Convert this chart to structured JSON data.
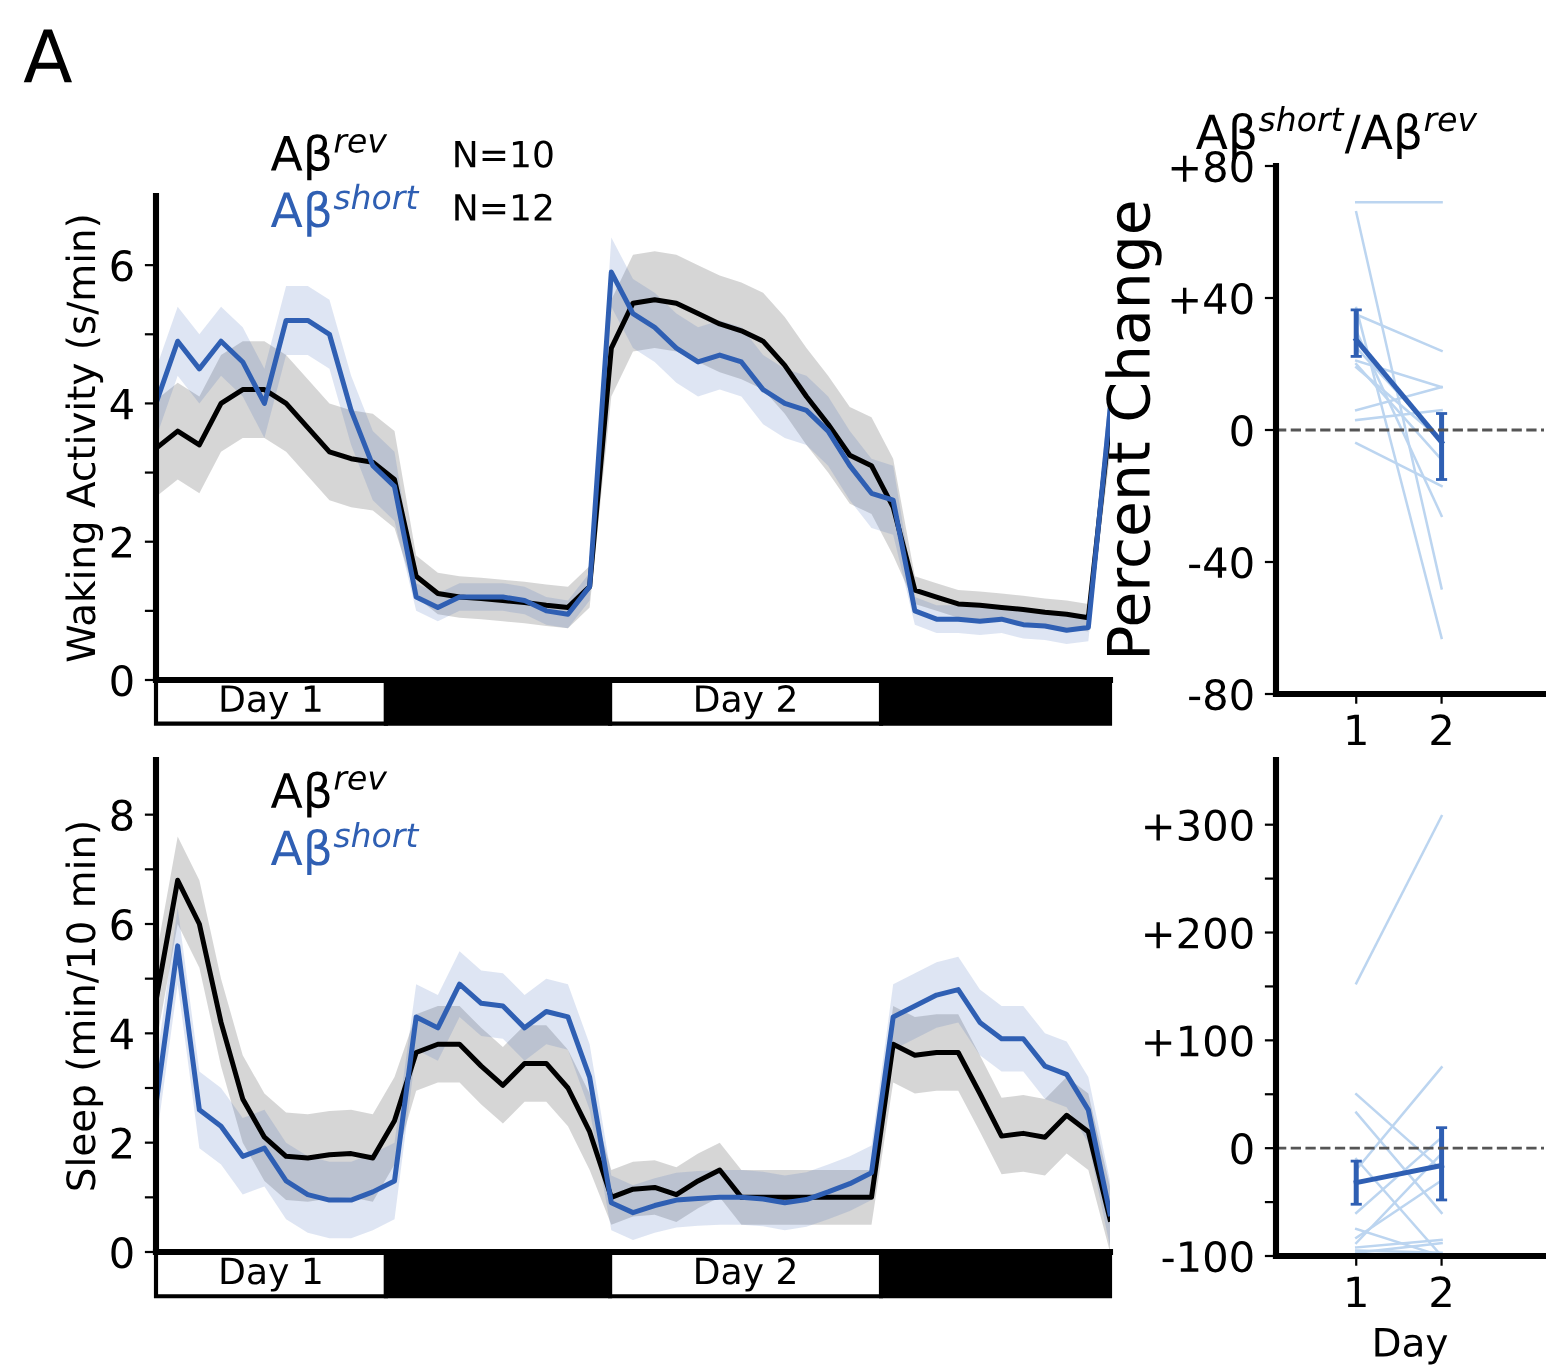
{
  "chart_data": [
    {
      "type": "line",
      "ylabel": "Waking Activity (s/min)",
      "annotations": [
        "A",
        "N=10",
        "N=12",
        "Day 1",
        "Day 2"
      ],
      "tick_labels": "y",
      "categories": [
        null,
        null,
        null,
        null,
        null,
        null,
        null,
        null,
        null,
        null,
        null,
        null,
        null,
        null,
        null,
        null,
        null,
        null,
        null,
        null,
        null,
        null,
        null,
        null,
        null,
        null,
        null,
        null,
        null,
        null,
        null,
        null,
        null,
        null,
        null,
        null,
        null,
        null,
        null,
        null,
        null,
        null,
        null,
        null,
        null
      ],
      "ylim": [
        0,
        7
      ],
      "yticks": [
        0,
        {
          "value": 1,
          "label": null
        },
        2,
        {
          "value": 3,
          "label": null
        },
        4,
        {
          "value": 5,
          "label": null
        },
        6
      ],
      "series": [
        {
          "name": "Aβ$^{rev}$",
          "color": "#000000",
          "values": [
            3.35,
            3.6,
            3.4,
            4.0,
            4.2,
            4.2,
            4.0,
            3.65,
            3.3,
            3.2,
            3.15,
            2.9,
            1.5,
            1.25,
            1.2,
            1.18,
            1.15,
            1.12,
            1.08,
            1.05,
            1.35,
            4.8,
            5.45,
            5.5,
            5.45,
            5.3,
            5.15,
            5.05,
            4.9,
            4.55,
            4.1,
            3.7,
            3.25,
            3.1,
            2.5,
            1.3,
            1.2,
            1.1,
            1.08,
            1.05,
            1.02,
            0.98,
            0.95,
            0.9,
            3.75
          ],
          "lower": [
            2.65,
            2.9,
            2.7,
            3.3,
            3.5,
            3.5,
            3.3,
            2.95,
            2.6,
            2.5,
            2.45,
            2.2,
            1.2,
            0.95,
            0.9,
            0.88,
            0.85,
            0.82,
            0.78,
            0.75,
            1.05,
            4.1,
            4.75,
            4.8,
            4.75,
            4.6,
            4.45,
            4.35,
            4.2,
            3.85,
            3.4,
            3.0,
            2.55,
            2.4,
            1.8,
            1.1,
            1.0,
            0.9,
            0.88,
            0.85,
            0.82,
            0.78,
            0.75,
            0.7,
            3.25
          ],
          "upper": [
            4.05,
            4.3,
            4.1,
            4.7,
            4.9,
            4.9,
            4.7,
            4.35,
            4.0,
            3.9,
            3.85,
            3.6,
            1.8,
            1.55,
            1.5,
            1.48,
            1.45,
            1.42,
            1.38,
            1.35,
            1.65,
            5.5,
            6.15,
            6.2,
            6.15,
            6.0,
            5.85,
            5.75,
            5.6,
            5.25,
            4.8,
            4.4,
            3.95,
            3.8,
            3.2,
            1.5,
            1.4,
            1.3,
            1.28,
            1.25,
            1.22,
            1.18,
            1.15,
            1.1,
            4.25
          ]
        },
        {
          "name": "Aβ$^{short}$",
          "color": "#2f5fb3",
          "values": [
            4.0,
            4.9,
            4.5,
            4.9,
            4.6,
            4.0,
            5.2,
            5.2,
            5.0,
            3.9,
            3.1,
            2.8,
            1.2,
            1.05,
            1.2,
            1.2,
            1.2,
            1.15,
            1.0,
            0.95,
            1.35,
            5.9,
            5.3,
            5.1,
            4.8,
            4.6,
            4.7,
            4.6,
            4.2,
            4.0,
            3.9,
            3.6,
            3.1,
            2.7,
            2.6,
            1.0,
            0.88,
            0.88,
            0.85,
            0.88,
            0.8,
            0.78,
            0.72,
            0.76,
            3.9
          ],
          "lower": [
            3.5,
            4.4,
            4.0,
            4.4,
            4.1,
            3.5,
            4.7,
            4.7,
            4.5,
            3.4,
            2.6,
            2.3,
            1.0,
            0.85,
            1.0,
            1.0,
            1.0,
            0.95,
            0.8,
            0.75,
            1.15,
            5.4,
            4.8,
            4.6,
            4.3,
            4.1,
            4.2,
            4.1,
            3.7,
            3.5,
            3.4,
            3.1,
            2.6,
            2.2,
            2.1,
            0.8,
            0.68,
            0.68,
            0.65,
            0.68,
            0.6,
            0.58,
            0.52,
            0.56,
            3.5
          ],
          "upper": [
            4.5,
            5.4,
            5.0,
            5.4,
            5.1,
            4.5,
            5.7,
            5.7,
            5.5,
            4.4,
            3.6,
            3.3,
            1.4,
            1.25,
            1.4,
            1.4,
            1.4,
            1.35,
            1.2,
            1.15,
            1.55,
            6.4,
            5.8,
            5.6,
            5.3,
            5.1,
            5.2,
            5.1,
            4.7,
            4.5,
            4.4,
            4.1,
            3.6,
            3.2,
            3.1,
            1.2,
            1.08,
            1.08,
            1.05,
            1.08,
            1.0,
            0.98,
            0.92,
            0.96,
            4.3
          ]
        }
      ]
    },
    {
      "type": "line",
      "ylabel": "Sleep (min/10 min)",
      "annotations": [
        "Day 1",
        "Day 2"
      ],
      "tick_labels": "y",
      "categories": [
        null,
        null,
        null,
        null,
        null,
        null,
        null,
        null,
        null,
        null,
        null,
        null,
        null,
        null,
        null,
        null,
        null,
        null,
        null,
        null,
        null,
        null,
        null,
        null,
        null,
        null,
        null,
        null,
        null,
        null,
        null,
        null,
        null,
        null,
        null,
        null,
        null,
        null,
        null,
        null,
        null,
        null,
        null,
        null,
        null
      ],
      "ylim": [
        0,
        9
      ],
      "yticks": [
        0,
        {
          "value": 1,
          "label": null
        },
        2,
        {
          "value": 3,
          "label": null
        },
        4,
        {
          "value": 5,
          "label": null
        },
        6,
        {
          "value": 7,
          "label": null
        },
        8
      ],
      "series": [
        {
          "name": "Aβ$^{rev}$",
          "color": "#000000",
          "values": [
            4.6,
            6.8,
            6.0,
            4.2,
            2.8,
            2.1,
            1.75,
            1.72,
            1.78,
            1.8,
            1.72,
            2.4,
            3.65,
            3.8,
            3.8,
            3.4,
            3.05,
            3.45,
            3.45,
            3.0,
            2.2,
            1.0,
            1.15,
            1.18,
            1.05,
            1.3,
            1.5,
            1.0,
            1.0,
            1.0,
            1.0,
            1.0,
            1.0,
            1.0,
            3.8,
            3.6,
            3.65,
            3.65,
            2.9,
            2.12,
            2.17,
            2.1,
            2.5,
            2.2,
            0.6
          ],
          "lower": [
            3.8,
            6.0,
            5.2,
            3.4,
            2.0,
            1.3,
            0.95,
            0.92,
            0.98,
            1.0,
            0.92,
            1.6,
            2.95,
            3.1,
            3.1,
            2.7,
            2.35,
            2.75,
            2.75,
            2.3,
            1.5,
            0.5,
            0.65,
            0.68,
            0.55,
            0.8,
            1.0,
            0.5,
            0.5,
            0.5,
            0.5,
            0.5,
            0.5,
            0.5,
            3.1,
            2.9,
            2.95,
            2.95,
            2.2,
            1.42,
            1.47,
            1.4,
            1.8,
            1.5,
            0.0
          ],
          "upper": [
            5.4,
            7.6,
            6.8,
            5.0,
            3.6,
            2.9,
            2.55,
            2.52,
            2.58,
            2.6,
            2.52,
            3.2,
            4.35,
            4.5,
            4.5,
            4.1,
            3.75,
            4.15,
            4.15,
            3.7,
            2.9,
            1.5,
            1.65,
            1.68,
            1.55,
            1.8,
            2.0,
            1.5,
            1.5,
            1.5,
            1.5,
            1.5,
            1.5,
            1.5,
            4.5,
            4.3,
            4.35,
            4.35,
            3.6,
            2.82,
            2.87,
            2.8,
            3.2,
            2.9,
            1.2
          ]
        },
        {
          "name": "Aβ$^{short}$",
          "color": "#2f5fb3",
          "values": [
            2.7,
            5.6,
            2.6,
            2.3,
            1.75,
            1.9,
            1.3,
            1.05,
            0.95,
            0.95,
            1.1,
            1.3,
            4.3,
            4.1,
            4.9,
            4.55,
            4.5,
            4.1,
            4.4,
            4.3,
            3.2,
            0.9,
            0.72,
            0.85,
            0.95,
            0.98,
            1.0,
            1.0,
            0.97,
            0.9,
            0.96,
            1.1,
            1.25,
            1.45,
            4.3,
            4.5,
            4.7,
            4.8,
            4.2,
            3.9,
            3.9,
            3.4,
            3.25,
            2.6,
            0.7
          ],
          "lower": [
            2.0,
            4.9,
            1.9,
            1.6,
            1.05,
            1.2,
            0.6,
            0.35,
            0.25,
            0.25,
            0.4,
            0.6,
            3.7,
            3.5,
            4.3,
            3.95,
            3.9,
            3.5,
            3.8,
            3.7,
            2.6,
            0.4,
            0.22,
            0.35,
            0.45,
            0.48,
            0.5,
            0.5,
            0.47,
            0.4,
            0.46,
            0.6,
            0.75,
            0.95,
            3.7,
            3.9,
            4.1,
            4.2,
            3.6,
            3.3,
            3.3,
            2.8,
            2.65,
            2.0,
            0.1
          ],
          "upper": [
            3.4,
            6.3,
            3.3,
            3.0,
            2.45,
            2.6,
            2.0,
            1.75,
            1.65,
            1.65,
            1.8,
            2.0,
            4.9,
            4.7,
            5.5,
            5.15,
            5.1,
            4.7,
            5.0,
            4.9,
            3.8,
            1.4,
            1.22,
            1.35,
            1.45,
            1.48,
            1.5,
            1.5,
            1.47,
            1.4,
            1.46,
            1.6,
            1.75,
            1.95,
            4.9,
            5.1,
            5.3,
            5.4,
            4.8,
            4.5,
            4.5,
            4.0,
            3.85,
            3.2,
            1.3
          ]
        }
      ]
    },
    {
      "type": "line",
      "title": "Aβ$^{short}$/Aβ$^{rev}$",
      "ylabel": "Percent Change",
      "categories": [
        "1",
        "2"
      ],
      "ylim": [
        -80,
        80
      ],
      "yticks": [
        -80,
        -40,
        0,
        {
          "value": 40,
          "label": "+40"
        },
        {
          "value": 80,
          "label": "+80"
        }
      ],
      "ref_lines": [
        {
          "axis": "y",
          "value": 0,
          "color": "#555555",
          "line_style": "dashed"
        }
      ],
      "series": [
        {
          "color": "#bcd5f0",
          "values": [
            69,
            69
          ]
        },
        {
          "color": "#bcd5f0",
          "values": [
            66,
            -48
          ]
        },
        {
          "color": "#bcd5f0",
          "values": [
            37,
            -63
          ]
        },
        {
          "color": "#bcd5f0",
          "values": [
            35,
            24
          ]
        },
        {
          "color": "#bcd5f0",
          "values": [
            21,
            13
          ]
        },
        {
          "color": "#bcd5f0",
          "values": [
            20,
            -9
          ]
        },
        {
          "color": "#bcd5f0",
          "values": [
            19,
            -3
          ]
        },
        {
          "color": "#bcd5f0",
          "values": [
            6,
            13
          ]
        },
        {
          "color": "#bcd5f0",
          "values": [
            3,
            6
          ]
        },
        {
          "color": "#bcd5f0",
          "values": [
            -4,
            -17
          ]
        },
        {
          "color": "#bcd5f0",
          "values": [
            30,
            -26
          ]
        },
        {
          "color": "#bcd5f0",
          "values": [
            25,
            -3
          ]
        },
        {
          "color": "#2f5fb3",
          "values": [
            27.3,
            -3.7
          ],
          "errors": [
            [
              22.3,
              36.4
            ],
            [
              -15,
              5
            ]
          ]
        }
      ]
    },
    {
      "type": "line",
      "xlabel": "Day",
      "categories": [
        "1",
        "2"
      ],
      "ylim": [
        -100,
        360
      ],
      "yticks": [
        -100,
        {
          "value": -50,
          "label": null
        },
        0,
        {
          "value": 50,
          "label": null
        },
        {
          "value": 100,
          "label": "+100"
        },
        {
          "value": 150,
          "label": null
        },
        {
          "value": 200,
          "label": "+200"
        },
        {
          "value": 250,
          "label": null
        },
        {
          "value": 300,
          "label": "+300"
        }
      ],
      "ref_lines": [
        {
          "axis": "y",
          "value": 0,
          "color": "#555555",
          "line_style": "dashed"
        }
      ],
      "series": [
        {
          "color": "#bcd5f0",
          "values": [
            153,
            308
          ]
        },
        {
          "color": "#bcd5f0",
          "values": [
            33,
            -60
          ]
        },
        {
          "color": "#bcd5f0",
          "values": [
            -20,
            75
          ]
        },
        {
          "color": "#bcd5f0",
          "values": [
            -60,
            10
          ]
        },
        {
          "color": "#bcd5f0",
          "values": [
            -75,
            -100
          ]
        },
        {
          "color": "#bcd5f0",
          "values": [
            -83,
            -30
          ]
        },
        {
          "color": "#bcd5f0",
          "values": [
            -88,
            -5
          ]
        },
        {
          "color": "#bcd5f0",
          "values": [
            -92,
            -85
          ]
        },
        {
          "color": "#bcd5f0",
          "values": [
            -95,
            -97
          ]
        },
        {
          "color": "#bcd5f0",
          "values": [
            -97,
            -88
          ]
        },
        {
          "color": "#bcd5f0",
          "values": [
            50,
            -20
          ]
        },
        {
          "color": "#bcd5f0",
          "values": [
            -10,
            -100
          ]
        },
        {
          "color": "#2f5fb3",
          "values": [
            -32,
            -16
          ],
          "errors": [
            [
              -52,
              -12
            ],
            [
              -48,
              19
            ]
          ]
        }
      ]
    }
  ]
}
